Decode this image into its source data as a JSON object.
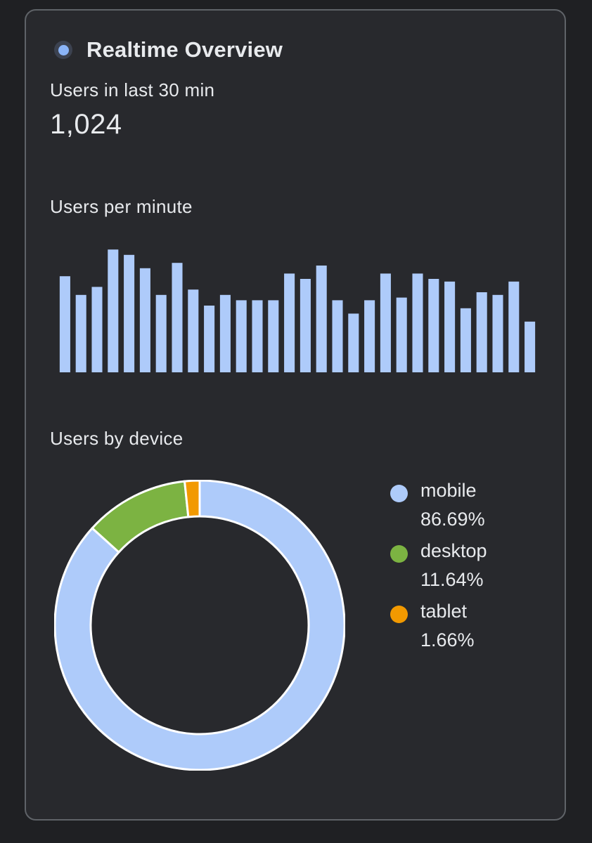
{
  "card": {
    "title": "Realtime Overview",
    "users_label": "Users in last 30 min",
    "users_value": "1,024",
    "per_minute_label": "Users per minute",
    "by_device_label": "Users by device"
  },
  "colors": {
    "background": "#1f2023",
    "card": "#28292d",
    "bar": "#aecbfa",
    "mobile": "#aecbfa",
    "desktop": "#7cb342",
    "tablet": "#f29900",
    "status_dot": "#8ab4f8"
  },
  "icons": {
    "status": "status-dot-icon"
  },
  "chart_data": [
    {
      "type": "bar",
      "title": "Users per minute",
      "values": [
        36,
        29,
        32,
        46,
        44,
        39,
        29,
        41,
        31,
        25,
        29,
        27,
        27,
        27,
        37,
        35,
        40,
        27,
        22,
        27,
        37,
        28,
        37,
        35,
        34,
        24,
        30,
        29,
        34,
        19
      ],
      "ylim": [
        0,
        50
      ],
      "grid": false,
      "xlabel": "",
      "ylabel": ""
    },
    {
      "type": "pie",
      "title": "Users by device",
      "donut": true,
      "labels": [
        "mobile",
        "desktop",
        "tablet"
      ],
      "values": [
        86.69,
        11.64,
        1.66
      ],
      "value_labels": [
        "86.69%",
        "11.64%",
        "1.66%"
      ],
      "colors": [
        "#aecbfa",
        "#7cb342",
        "#f29900"
      ],
      "legend": "right"
    }
  ]
}
